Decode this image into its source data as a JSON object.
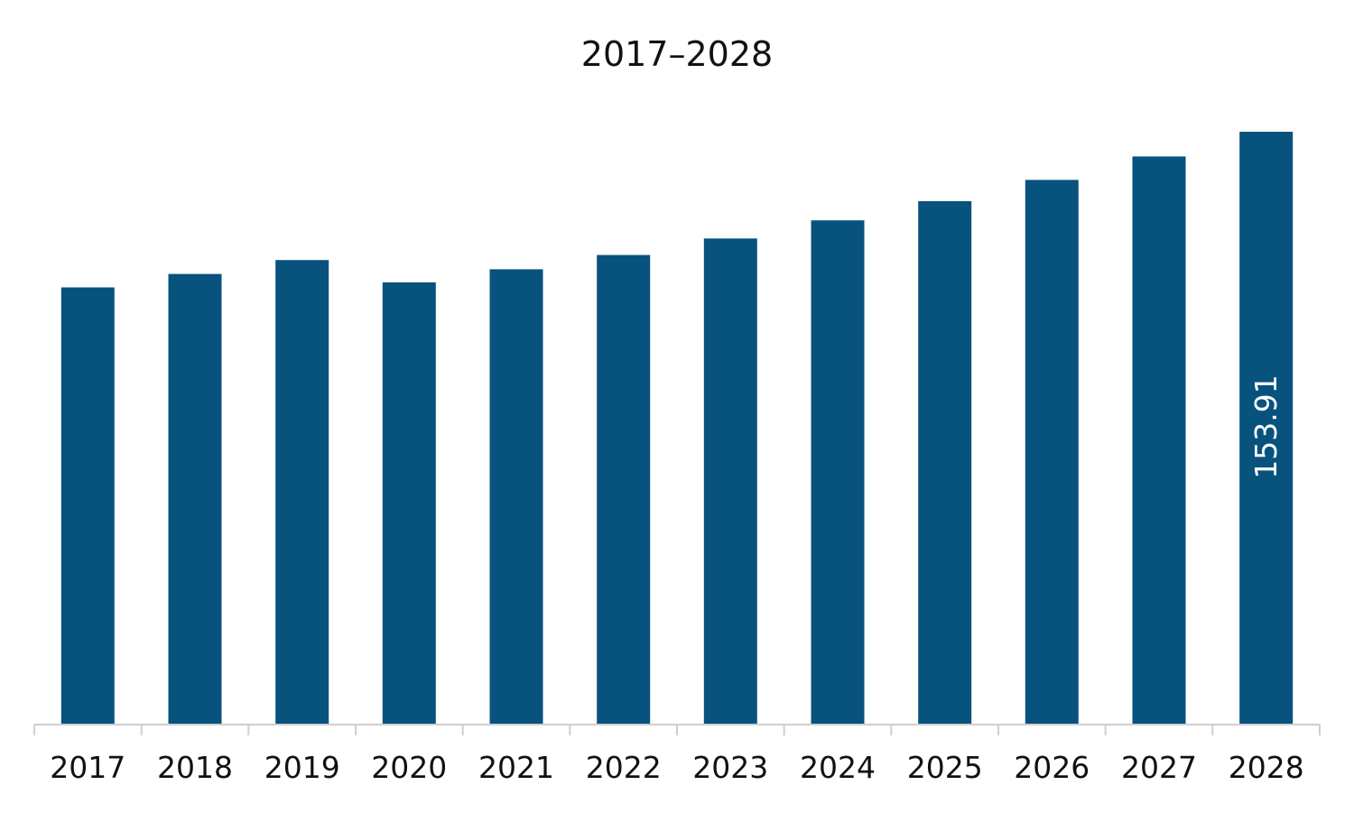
{
  "chart_data": {
    "type": "bar",
    "title": "2017–2028",
    "xlabel": "",
    "ylabel": "",
    "categories": [
      "2017",
      "2018",
      "2019",
      "2020",
      "2021",
      "2022",
      "2023",
      "2024",
      "2025",
      "2026",
      "2027",
      "2028"
    ],
    "values": [
      113.5,
      117.0,
      120.6,
      114.8,
      118.2,
      121.9,
      126.2,
      130.9,
      135.9,
      141.4,
      147.5,
      153.91
    ],
    "ylim": [
      0,
      160
    ],
    "grid": false,
    "legend": "none",
    "data_labels": [
      {
        "category": "2028",
        "text": "153.91"
      }
    ],
    "colors": {
      "bar": "#08527e",
      "axis": "#cfcfcf",
      "text": "#111111",
      "label": "#ffffff"
    }
  }
}
